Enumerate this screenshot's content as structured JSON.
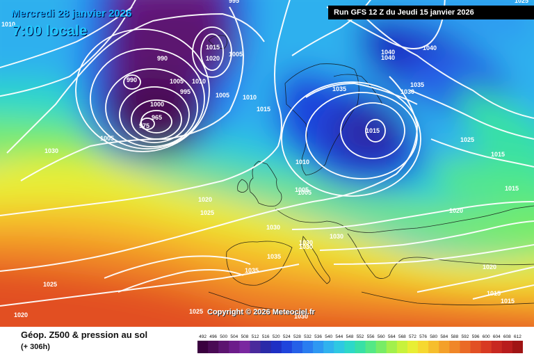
{
  "map": {
    "valid_date": "Mercredi 28 janvier 2026",
    "local_time": "7:00 locale",
    "run_info": "Run GFS 12 Z du Jeudi 15 janvier 2026",
    "copyright": "Copyright © 2026 Meteociel.fr"
  },
  "legend": {
    "title": "Géop. Z500 & pression au sol",
    "forecast_hour": "(+ 306h)",
    "scale_values": [
      "492",
      "496",
      "500",
      "504",
      "508",
      "512",
      "516",
      "520",
      "524",
      "528",
      "532",
      "536",
      "540",
      "544",
      "548",
      "552",
      "556",
      "560",
      "564",
      "568",
      "572",
      "576",
      "580",
      "584",
      "588",
      "592",
      "596",
      "600",
      "604",
      "608",
      "612"
    ],
    "scale_colors": [
      "#3a003f",
      "#4a0a55",
      "#5c1470",
      "#6c1c8a",
      "#7a27a0",
      "#4a2a9c",
      "#2a2aa8",
      "#1e2fc4",
      "#1f44dc",
      "#2560e8",
      "#2a7df0",
      "#2e98f2",
      "#30b2ee",
      "#2ec8e2",
      "#2dd8c8",
      "#38e0a6",
      "#54e886",
      "#78ec66",
      "#a2f04c",
      "#c8f23c",
      "#e8ee34",
      "#f6d830",
      "#f6be2c",
      "#f4a02a",
      "#f08628",
      "#ea6a26",
      "#e25024",
      "#d83a22",
      "#c82820",
      "#b81c1c",
      "#a01414"
    ]
  },
  "isobars": {
    "labels": [
      "1010",
      "1005",
      "995",
      "990",
      "1015",
      "1020",
      "1005",
      "1010",
      "1005",
      "990",
      "1005",
      "1000",
      "995",
      "975",
      "965",
      "1005",
      "1010",
      "1015",
      "1040",
      "1040",
      "1040",
      "1035",
      "1035",
      "1030",
      "1015",
      "1025",
      "1015",
      "1030",
      "1010",
      "1005",
      "1020",
      "1015",
      "1025",
      "1030",
      "1030",
      "1030",
      "1030",
      "1035",
      "1035",
      "1025",
      "1020",
      "1015",
      "1015",
      "1025",
      "1020",
      "1030",
      "1025",
      "1020"
    ]
  }
}
